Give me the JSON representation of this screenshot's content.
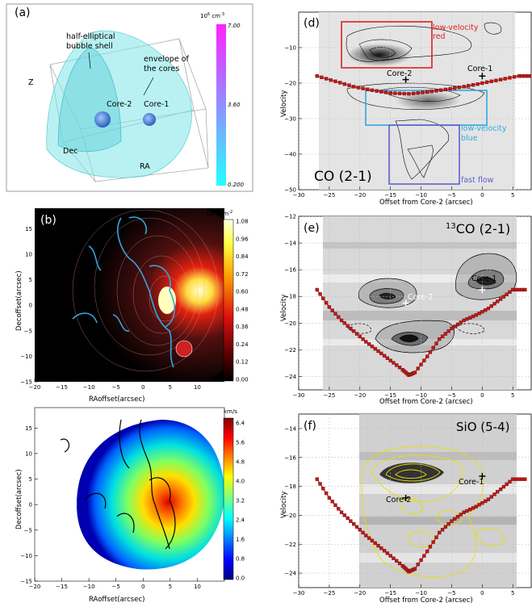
{
  "panel_a": {
    "label": "(a)",
    "unit_label": "10",
    "unit_sup": "6",
    "unit_rest": " cm",
    "unit_exp": "-3",
    "cbar_ticks": [
      "7.00",
      "3.60",
      "0.200"
    ],
    "annotations": {
      "shell1": "half-elliptical",
      "shell2": "bubble shell",
      "env1": "envelope of",
      "env2": "the cores",
      "core2": "Core-2",
      "core1": "Core-1",
      "z": "Z",
      "dec": "Dec",
      "ra": "RA"
    }
  },
  "panel_b": {
    "label": "(b)",
    "unit_label": "10",
    "unit_sup": "24",
    "unit_rest": " cm",
    "unit_exp": "-2",
    "cbar_ticks": [
      "1.08",
      "0.96",
      "0.84",
      "0.72",
      "0.60",
      "0.48",
      "0.36",
      "0.24",
      "0.12",
      "0.00"
    ],
    "xticks": [
      "−20",
      "−15",
      "−10",
      "−5",
      "0",
      "5",
      "10"
    ],
    "yticks": [
      "15",
      "10",
      "5",
      "0",
      "−5",
      "−10",
      "−15"
    ],
    "xlabel": "RAoffset(arcsec)",
    "ylabel": "Decoffset(arcsec)"
  },
  "panel_c": {
    "label": "(c)",
    "unit_label": "km/s",
    "cbar_ticks": [
      "6.4",
      "5.6",
      "4.8",
      "4.0",
      "3.2",
      "2.4",
      "1.6",
      "0.8",
      "0.0"
    ],
    "xticks": [
      "−20",
      "−15",
      "−10",
      "−5",
      "0",
      "5",
      "10"
    ],
    "yticks": [
      "15",
      "10",
      "5",
      "0",
      "−5",
      "−10",
      "−15"
    ],
    "xlabel": "RAoffset(arcsec)",
    "ylabel": "Decoffset(arcsec)"
  },
  "panel_d": {
    "label": "(d)",
    "title": "CO (2-1)",
    "xticks": [
      "−30",
      "−25",
      "−20",
      "−15",
      "−10",
      "−5",
      "0",
      "5"
    ],
    "yticks": [
      "−10",
      "−20",
      "−30",
      "−40",
      "−50"
    ],
    "xlabel": "Offset from Core-2 (arcsec)",
    "ylabel": "Velocity",
    "box_red1": "low-velocity",
    "box_red2": "red",
    "box_blue1": "low-velocity",
    "box_blue2": "blue",
    "box_fast": "fast flow",
    "core2": "Core-2",
    "core1": "Core-1"
  },
  "panel_e": {
    "label": "(e)",
    "title_sup": "13",
    "title": "CO (2-1)",
    "xticks": [
      "−30",
      "−25",
      "−20",
      "−15",
      "−10",
      "−5",
      "0",
      "5"
    ],
    "yticks": [
      "−12",
      "−14",
      "−16",
      "−18",
      "−20",
      "−22",
      "−24"
    ],
    "xlabel": "Offset from Core-2 (arcsec)",
    "ylabel": "Velocity",
    "core2": "Core-2",
    "core1": "Core-1"
  },
  "panel_f": {
    "label": "(f)",
    "title": "SiO (5-4)",
    "xticks": [
      "−30",
      "−25",
      "−20",
      "−15",
      "−10",
      "−5",
      "0",
      "5"
    ],
    "yticks": [
      "−14",
      "−16",
      "−18",
      "−20",
      "−22",
      "−24"
    ],
    "xlabel": "Offset from Core-2 (arcsec)",
    "ylabel": "Velocity",
    "core2": "Core-2",
    "core1": "Core-1"
  },
  "colors": {
    "shell": "#7fe6ea",
    "red_box": "#e02020",
    "blue_box": "#30a8e0",
    "fast_box": "#6060d0",
    "model": "#c01818",
    "sio_contour": "#e8e000"
  },
  "chart_data": [
    {
      "type": "heatmap",
      "panel": "b",
      "xlim": [
        -20,
        15
      ],
      "ylim": [
        -15,
        19
      ],
      "colorbar_range": [
        0.0,
        1.08
      ],
      "peaks": [
        {
          "x": 2,
          "y": 0,
          "value": 1.0
        },
        {
          "x": 8,
          "y": -10,
          "value": 0.5
        }
      ]
    },
    {
      "type": "heatmap",
      "panel": "c",
      "xlim": [
        -20,
        15
      ],
      "ylim": [
        -15,
        19
      ],
      "colorbar_range": [
        0.0,
        6.4
      ],
      "peaks": [
        {
          "x": 3,
          "y": 1,
          "value": 6.4
        }
      ]
    },
    {
      "type": "line",
      "panel": "d",
      "xlim": [
        -30,
        8
      ],
      "ylim": [
        -50,
        0
      ],
      "series": [
        {
          "x": [
            -27,
            -24,
            -21,
            -18,
            -15,
            -12,
            -9,
            -6,
            -3,
            0,
            3,
            6,
            8
          ],
          "y": [
            -18,
            -19.5,
            -21,
            -22,
            -22.8,
            -23,
            -22.5,
            -21.8,
            -21,
            -20,
            -19,
            -18,
            -18
          ]
        }
      ],
      "markers": [
        {
          "x": -12.5,
          "y": -19,
          "label": "Core-2"
        },
        {
          "x": 0,
          "y": -18,
          "label": "Core-1"
        }
      ]
    },
    {
      "type": "line",
      "panel": "e",
      "xlim": [
        -30,
        8
      ],
      "ylim": [
        -25,
        -12
      ],
      "series": [
        {
          "x": [
            -27,
            -25,
            -23,
            -21,
            -19,
            -17,
            -15,
            -13,
            -12,
            -11,
            -9,
            -7,
            -5,
            -3,
            -1,
            1,
            3,
            5,
            7
          ],
          "y": [
            -17.5,
            -18.8,
            -19.8,
            -20.6,
            -21.4,
            -22.1,
            -22.8,
            -23.5,
            -23.9,
            -23.7,
            -22.5,
            -21.2,
            -20.4,
            -19.8,
            -19.4,
            -18.9,
            -18.2,
            -17.5,
            -17.5
          ]
        }
      ],
      "markers": [
        {
          "x": -12.5,
          "y": -18.5,
          "label": "Core-2"
        },
        {
          "x": 0,
          "y": -17.5,
          "label": "Core-1"
        }
      ]
    },
    {
      "type": "line",
      "panel": "f",
      "xlim": [
        -30,
        8
      ],
      "ylim": [
        -25,
        -13
      ],
      "series": [
        {
          "x": [
            -27,
            -25,
            -23,
            -21,
            -19,
            -17,
            -15,
            -13,
            -12,
            -11,
            -9,
            -7,
            -5,
            -3,
            -1,
            1,
            3,
            5,
            7
          ],
          "y": [
            -17.5,
            -18.8,
            -19.8,
            -20.6,
            -21.4,
            -22.1,
            -22.8,
            -23.5,
            -23.9,
            -23.7,
            -22.5,
            -21.2,
            -20.4,
            -19.8,
            -19.4,
            -18.9,
            -18.2,
            -17.5,
            -17.5
          ]
        }
      ],
      "markers": [
        {
          "x": -12.5,
          "y": -18.8,
          "label": "Core-2"
        },
        {
          "x": 0,
          "y": -17.3,
          "label": "Core-1"
        }
      ]
    }
  ]
}
